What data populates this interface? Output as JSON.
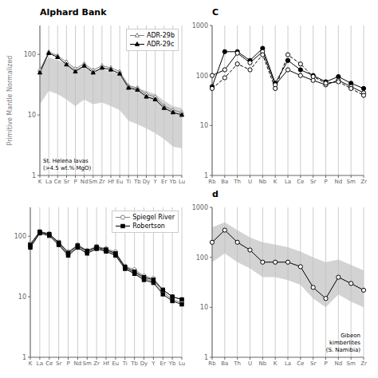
{
  "chart_data": [
    {
      "type": "line",
      "title": "Alphard Bank",
      "ylabel": "Primitive Mantle Normalized",
      "categories": [
        "K",
        "La",
        "Ce",
        "Sr",
        "P",
        "Nd",
        "Sm",
        "Zr",
        "Hf",
        "Eu",
        "Ti",
        "Tb",
        "Dy",
        "Y",
        "Er",
        "Yb",
        "Lu"
      ],
      "series": [
        {
          "type": "band",
          "color": "#c0c0c0",
          "lower": [
            15,
            25,
            22,
            18,
            14,
            18,
            15,
            16,
            14,
            12,
            8,
            7,
            6,
            5,
            4,
            3,
            2.8
          ],
          "upper": [
            60,
            90,
            80,
            70,
            58,
            65,
            55,
            58,
            52,
            48,
            32,
            28,
            25,
            22,
            17,
            14,
            13
          ]
        },
        {
          "name": "ADR-29b",
          "color": "#808080",
          "marker": "open_triangle",
          "line_style": "solid",
          "values": [
            55,
            110,
            95,
            75,
            58,
            70,
            55,
            65,
            60,
            52,
            30,
            28,
            22,
            20,
            14,
            12,
            11
          ]
        },
        {
          "name": "ADR-29c",
          "color": "#000000",
          "marker": "triangle",
          "line_style": "solid",
          "values": [
            50,
            105,
            90,
            68,
            52,
            65,
            50,
            60,
            56,
            48,
            28,
            26,
            20,
            18,
            13,
            11,
            10
          ]
        }
      ],
      "annotations": [
        "St. Helena lavas\n(>4.5 wt.% MgO)"
      ],
      "log": "y",
      "ylim": [
        1,
        300
      ],
      "yticks": [
        1,
        10,
        100
      ],
      "grid": "x",
      "legend": "upper right"
    },
    {
      "type": "line",
      "title": "C",
      "categories": [
        "Rb",
        "Ba",
        "Th",
        "U",
        "Nb",
        "K",
        "La",
        "Ce",
        "Sr",
        "P",
        "Nd",
        "Sm",
        "Zr"
      ],
      "series": [
        {
          "color": "#000000",
          "marker": "circle",
          "line_style": "solid",
          "values": [
            60,
            300,
            300,
            200,
            350,
            70,
            200,
            130,
            100,
            75,
            95,
            70,
            55
          ]
        },
        {
          "color": "#000000",
          "marker": "open_circle",
          "line_style": "solid",
          "values": [
            100,
            130,
            280,
            180,
            300,
            65,
            130,
            100,
            80,
            65,
            80,
            60,
            45
          ]
        },
        {
          "color": "#000000",
          "marker": "open_circle",
          "line_style": "dashed",
          "values": [
            55,
            90,
            170,
            130,
            260,
            55,
            260,
            170,
            95,
            70,
            75,
            55,
            40
          ]
        }
      ],
      "log": "y",
      "ylim": [
        1,
        1000
      ],
      "yticks": [
        1,
        10,
        100,
        1000
      ],
      "grid": "x"
    },
    {
      "type": "line",
      "categories": [
        "K",
        "La",
        "Ce",
        "Sr",
        "P",
        "Nd",
        "Sm",
        "Zr",
        "Hf",
        "Eu",
        "Ti",
        "Tb",
        "Dy",
        "Y",
        "Er",
        "Yb",
        "Lu"
      ],
      "series": [
        {
          "name": "Spiegel River",
          "color": "#808080",
          "marker": "open_circle",
          "line_style": "solid",
          "values": [
            75,
            120,
            110,
            80,
            55,
            72,
            58,
            68,
            62,
            55,
            32,
            28,
            22,
            20,
            13,
            10,
            9
          ]
        },
        {
          "color": "#808080",
          "marker": "open_circle",
          "line_style": "solid",
          "values": [
            68,
            115,
            105,
            75,
            50,
            68,
            54,
            64,
            58,
            50,
            30,
            25,
            20,
            18,
            12,
            9,
            8
          ]
        },
        {
          "name": "Robertson",
          "color": "#000000",
          "marker": "square",
          "line_style": "solid",
          "values": [
            72,
            118,
            108,
            78,
            53,
            70,
            57,
            66,
            60,
            52,
            31,
            26,
            21,
            19,
            13,
            10,
            9
          ]
        },
        {
          "color": "#000000",
          "marker": "square",
          "line_style": "solid",
          "values": [
            65,
            112,
            102,
            72,
            48,
            65,
            52,
            62,
            56,
            48,
            29,
            24,
            19,
            17,
            11,
            8.5,
            7.5
          ]
        }
      ],
      "log": "y",
      "ylim": [
        1,
        300
      ],
      "yticks": [
        1,
        10,
        100
      ],
      "grid": "x",
      "legend": "upper right"
    },
    {
      "type": "line",
      "title": "d",
      "categories": [
        "Rb",
        "Ba",
        "Th",
        "U",
        "Nb",
        "K",
        "La",
        "Ce",
        "Sr",
        "P",
        "Nd",
        "Sm",
        "Zr"
      ],
      "series": [
        {
          "type": "band",
          "color": "#c0c0c0",
          "lower": [
            80,
            120,
            80,
            60,
            40,
            40,
            35,
            28,
            15,
            10,
            18,
            13,
            10
          ],
          "upper": [
            400,
            500,
            350,
            250,
            200,
            180,
            160,
            130,
            100,
            80,
            90,
            70,
            55
          ]
        },
        {
          "color": "#000000",
          "marker": "open_circle",
          "line_style": "solid",
          "values": [
            200,
            350,
            200,
            140,
            80,
            80,
            80,
            65,
            25,
            15,
            40,
            30,
            22
          ]
        }
      ],
      "annotations": [
        "Gibeon\nkimberlites\n(S. Namibia)"
      ],
      "log": "y",
      "ylim": [
        1,
        1000
      ],
      "yticks": [
        1,
        10,
        100,
        1000
      ],
      "grid": "x"
    }
  ]
}
